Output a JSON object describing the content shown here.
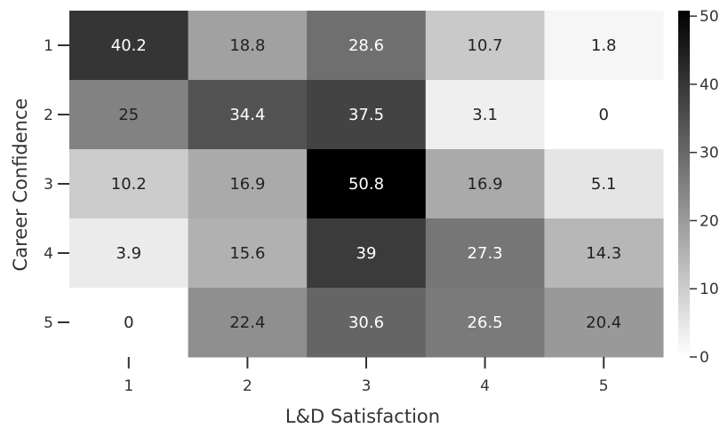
{
  "chart_data": {
    "type": "heatmap",
    "title": "",
    "xlabel": "L&D Satisfaction",
    "ylabel": "Career Confidence",
    "x_categories": [
      "1",
      "2",
      "3",
      "4",
      "5"
    ],
    "y_categories": [
      "1",
      "2",
      "3",
      "4",
      "5"
    ],
    "values": [
      [
        40.2,
        18.8,
        28.6,
        10.7,
        1.8
      ],
      [
        25,
        34.4,
        37.5,
        3.1,
        0
      ],
      [
        10.2,
        16.9,
        50.8,
        16.9,
        5.1
      ],
      [
        3.9,
        15.6,
        39,
        27.3,
        14.3
      ],
      [
        0,
        22.4,
        30.6,
        26.5,
        20.4
      ]
    ],
    "value_labels": [
      [
        "40.2",
        "18.8",
        "28.6",
        "10.7",
        "1.8"
      ],
      [
        "25",
        "34.4",
        "37.5",
        "3.1",
        "0"
      ],
      [
        "10.2",
        "16.9",
        "50.8",
        "16.9",
        "5.1"
      ],
      [
        "3.9",
        "15.6",
        "39",
        "27.3",
        "14.3"
      ],
      [
        "0",
        "22.4",
        "30.6",
        "26.5",
        "20.4"
      ]
    ],
    "colorbar": {
      "min": 0,
      "max": 50.8,
      "ticks": [
        0,
        10,
        20,
        30,
        40,
        50
      ],
      "tick_labels": [
        "0",
        "10",
        "20",
        "30",
        "40",
        "50"
      ],
      "color_low": "#ffffff",
      "color_high": "#000000"
    },
    "grid": false
  }
}
